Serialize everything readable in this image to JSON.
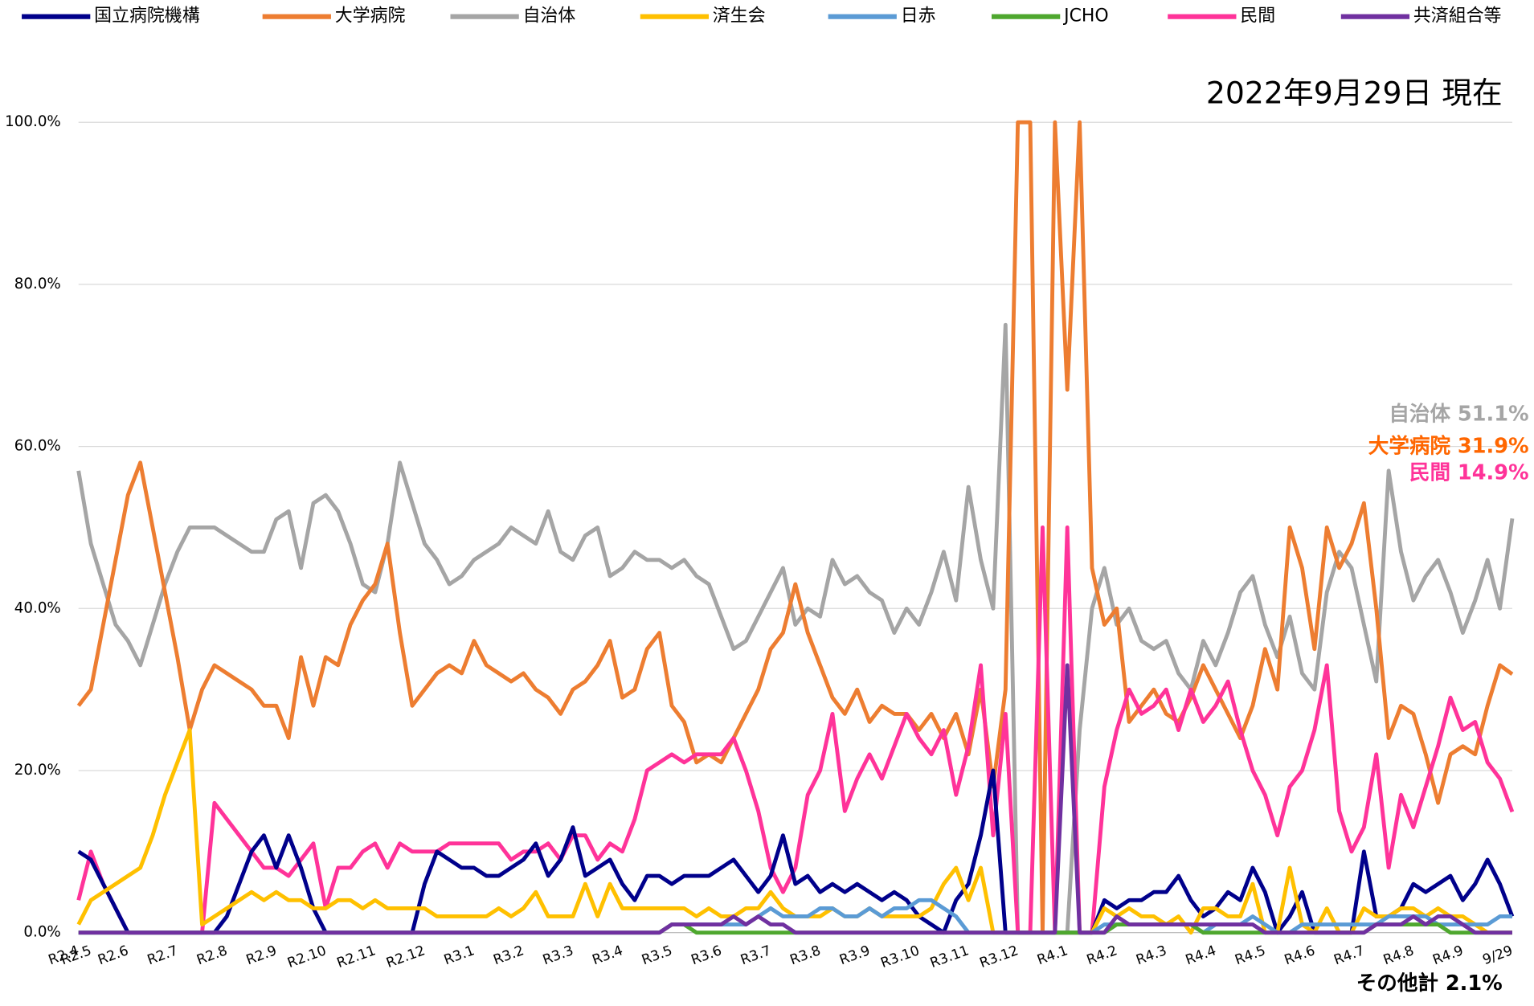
{
  "chart_data": {
    "type": "line",
    "annotations": [
      "2022年9月29日 現在",
      "自治体 51.1%",
      "大学病院 31.9%",
      "民間 14.9%",
      "その他計 2.1%"
    ],
    "categories": [
      "R2.4",
      "R2.5",
      null,
      null,
      "R2.6",
      null,
      null,
      null,
      "R2.7",
      null,
      null,
      null,
      "R2.8",
      null,
      null,
      null,
      "R2.9",
      null,
      null,
      null,
      "R2.10",
      null,
      null,
      null,
      "R2.11",
      null,
      null,
      null,
      "R2.12",
      null,
      null,
      null,
      "R3.1",
      null,
      null,
      null,
      "R3.2",
      null,
      null,
      null,
      "R3.3",
      null,
      null,
      null,
      "R3.4",
      null,
      null,
      null,
      "R3.5",
      null,
      null,
      null,
      "R3.6",
      null,
      null,
      null,
      "R3.7",
      null,
      null,
      null,
      "R3.8",
      null,
      null,
      null,
      "R3.9",
      null,
      null,
      null,
      "R3.10",
      null,
      null,
      null,
      "R3.11",
      null,
      null,
      null,
      "R3.12",
      null,
      null,
      null,
      "R4.1",
      null,
      null,
      null,
      "R4.2",
      null,
      null,
      null,
      "R4.3",
      null,
      null,
      null,
      "R4.4",
      null,
      null,
      null,
      "R4.5",
      null,
      null,
      null,
      "R4.6",
      null,
      null,
      null,
      "R4.7",
      null,
      null,
      null,
      "R4.8",
      null,
      null,
      null,
      "R4.9",
      null,
      null,
      null,
      "9/29"
    ],
    "ylim": [
      0,
      100
    ],
    "yticks": [
      {
        "value": 0,
        "label": "0.0%"
      },
      {
        "value": 20,
        "label": "20.0%"
      },
      {
        "value": 40,
        "label": "40.0%"
      },
      {
        "value": 60,
        "label": "60.0%"
      },
      {
        "value": 80,
        "label": "80.0%"
      },
      {
        "value": 100,
        "label": "100.0%"
      }
    ],
    "grid": true,
    "legend": "top",
    "series": [
      {
        "name": "国立病院機構",
        "color": "#00008b",
        "values": [
          10,
          9,
          6,
          3,
          0,
          0,
          0,
          0,
          0,
          0,
          0,
          0,
          2,
          6,
          10,
          12,
          8,
          12,
          8,
          3,
          0,
          0,
          0,
          0,
          0,
          0,
          0,
          0,
          6,
          10,
          9,
          8,
          8,
          7,
          7,
          8,
          9,
          11,
          7,
          9,
          13,
          7,
          8,
          9,
          6,
          4,
          7,
          7,
          6,
          7,
          7,
          7,
          8,
          9,
          7,
          5,
          7,
          12,
          6,
          7,
          5,
          6,
          5,
          6,
          5,
          4,
          5,
          4,
          2,
          1,
          0,
          4,
          6,
          12,
          20,
          0,
          0,
          0,
          0,
          0,
          0,
          0,
          0,
          4,
          3,
          4,
          4,
          5,
          5,
          7,
          4,
          2,
          3,
          5,
          4,
          8,
          5,
          0,
          2,
          5,
          0,
          0,
          0,
          0,
          10,
          2,
          2,
          3,
          6,
          5,
          6,
          7,
          4,
          6,
          9,
          6,
          2
        ]
      },
      {
        "name": "大学病院",
        "color": "#ed7d31",
        "values": [
          28,
          30,
          38,
          46,
          54,
          58,
          50,
          42,
          34,
          25,
          30,
          33,
          32,
          31,
          30,
          28,
          28,
          24,
          34,
          28,
          34,
          33,
          38,
          41,
          43,
          48,
          37,
          28,
          30,
          32,
          33,
          32,
          36,
          33,
          32,
          31,
          32,
          30,
          29,
          27,
          30,
          31,
          33,
          36,
          29,
          30,
          35,
          37,
          28,
          26,
          21,
          22,
          21,
          24,
          27,
          30,
          35,
          37,
          43,
          37,
          33,
          29,
          27,
          30,
          26,
          28,
          27,
          27,
          25,
          27,
          24,
          27,
          22,
          30,
          18,
          30,
          100,
          100,
          0,
          100,
          67,
          100,
          45,
          38,
          40,
          26,
          28,
          30,
          27,
          26,
          29,
          33,
          30,
          27,
          24,
          28,
          35,
          30,
          50,
          45,
          35,
          50,
          45,
          48,
          53,
          40,
          24,
          28,
          27,
          22,
          16,
          22,
          23,
          22,
          28,
          33,
          31.9
        ]
      },
      {
        "name": "自治体",
        "color": "#a5a5a5",
        "values": [
          57,
          48,
          43,
          38,
          36,
          33,
          38,
          43,
          47,
          50,
          50,
          50,
          49,
          48,
          47,
          47,
          51,
          52,
          45,
          53,
          54,
          52,
          48,
          43,
          42,
          48,
          58,
          53,
          48,
          46,
          43,
          44,
          46,
          47,
          48,
          50,
          49,
          48,
          52,
          47,
          46,
          49,
          50,
          44,
          45,
          47,
          46,
          46,
          45,
          46,
          44,
          43,
          39,
          35,
          36,
          39,
          42,
          45,
          38,
          40,
          39,
          46,
          43,
          44,
          42,
          41,
          37,
          40,
          38,
          42,
          47,
          41,
          55,
          46,
          40,
          75,
          0,
          0,
          0,
          0,
          0,
          25,
          40,
          45,
          38,
          40,
          36,
          35,
          36,
          32,
          30,
          36,
          33,
          37,
          42,
          44,
          38,
          34,
          39,
          32,
          30,
          42,
          47,
          45,
          38,
          31,
          57,
          47,
          41,
          44,
          46,
          42,
          37,
          41,
          46,
          40,
          51.1
        ]
      },
      {
        "name": "済生会",
        "color": "#ffc000",
        "values": [
          1,
          4,
          5,
          6,
          7,
          8,
          12,
          17,
          21,
          25,
          1,
          2,
          3,
          4,
          5,
          4,
          5,
          4,
          4,
          3,
          3,
          4,
          4,
          3,
          4,
          3,
          3,
          3,
          3,
          2,
          2,
          2,
          2,
          2,
          3,
          2,
          3,
          5,
          2,
          2,
          2,
          6,
          2,
          6,
          3,
          3,
          3,
          3,
          3,
          3,
          2,
          3,
          2,
          2,
          3,
          3,
          5,
          3,
          2,
          2,
          2,
          3,
          2,
          2,
          3,
          2,
          2,
          2,
          2,
          3,
          6,
          8,
          4,
          8,
          0,
          0,
          0,
          0,
          0,
          0,
          0,
          0,
          0,
          3,
          2,
          3,
          2,
          2,
          1,
          2,
          0,
          3,
          3,
          2,
          2,
          6,
          0,
          0,
          8,
          1,
          0,
          3,
          0,
          0,
          3,
          2,
          2,
          3,
          3,
          2,
          3,
          2,
          2,
          1,
          0,
          0,
          0
        ]
      },
      {
        "name": "日赤",
        "color": "#5b9bd5",
        "values": [
          0,
          0,
          0,
          0,
          0,
          0,
          0,
          0,
          0,
          0,
          0,
          0,
          0,
          0,
          0,
          0,
          0,
          0,
          0,
          0,
          0,
          0,
          0,
          0,
          0,
          0,
          0,
          0,
          0,
          0,
          0,
          0,
          0,
          0,
          0,
          0,
          0,
          0,
          0,
          0,
          0,
          0,
          0,
          0,
          0,
          0,
          0,
          0,
          1,
          1,
          1,
          1,
          1,
          1,
          1,
          2,
          3,
          2,
          2,
          2,
          3,
          3,
          2,
          2,
          3,
          2,
          3,
          3,
          4,
          4,
          3,
          2,
          0,
          0,
          0,
          0,
          0,
          0,
          0,
          0,
          0,
          0,
          0,
          1,
          1,
          1,
          1,
          1,
          1,
          1,
          1,
          0,
          1,
          1,
          1,
          2,
          1,
          0,
          0,
          1,
          1,
          1,
          1,
          1,
          1,
          1,
          2,
          2,
          2,
          2,
          1,
          1,
          1,
          1,
          1,
          2,
          2
        ]
      },
      {
        "name": "JCHO",
        "color": "#4ea72e",
        "values": [
          0,
          0,
          0,
          0,
          0,
          0,
          0,
          0,
          0,
          0,
          0,
          0,
          0,
          0,
          0,
          0,
          0,
          0,
          0,
          0,
          0,
          0,
          0,
          0,
          0,
          0,
          0,
          0,
          0,
          0,
          0,
          0,
          0,
          0,
          0,
          0,
          0,
          0,
          0,
          0,
          0,
          0,
          0,
          0,
          0,
          0,
          0,
          0,
          1,
          1,
          0,
          0,
          0,
          0,
          0,
          0,
          0,
          0,
          0,
          0,
          0,
          0,
          0,
          0,
          0,
          0,
          0,
          0,
          0,
          0,
          0,
          0,
          0,
          0,
          0,
          0,
          0,
          0,
          0,
          0,
          0,
          0,
          0,
          0,
          1,
          1,
          1,
          1,
          1,
          1,
          1,
          0,
          0,
          0,
          0,
          0,
          0,
          0,
          0,
          0,
          0,
          0,
          0,
          0,
          0,
          1,
          1,
          1,
          1,
          1,
          1,
          0,
          0,
          0,
          0,
          0,
          0
        ]
      },
      {
        "name": "民間",
        "color": "#ff3399",
        "values": [
          4,
          10,
          6,
          3,
          0,
          0,
          0,
          0,
          0,
          0,
          0,
          16,
          14,
          12,
          10,
          8,
          8,
          7,
          9,
          11,
          3,
          8,
          8,
          10,
          11,
          8,
          11,
          10,
          10,
          10,
          11,
          11,
          11,
          11,
          11,
          9,
          10,
          10,
          11,
          9,
          12,
          12,
          9,
          11,
          10,
          14,
          20,
          21,
          22,
          21,
          22,
          22,
          22,
          24,
          20,
          15,
          8,
          5,
          8,
          17,
          20,
          27,
          15,
          19,
          22,
          19,
          23,
          27,
          24,
          22,
          25,
          17,
          23,
          33,
          12,
          27,
          0,
          0,
          50,
          0,
          50,
          0,
          0,
          18,
          25,
          30,
          27,
          28,
          30,
          25,
          30,
          26,
          28,
          31,
          25,
          20,
          17,
          12,
          18,
          20,
          25,
          33,
          15,
          10,
          13,
          22,
          8,
          17,
          13,
          18,
          23,
          29,
          25,
          26,
          21,
          19,
          14.9
        ]
      },
      {
        "name": "共済組合等",
        "color": "#7030a0",
        "values": [
          0,
          0,
          0,
          0,
          0,
          0,
          0,
          0,
          0,
          0,
          0,
          0,
          0,
          0,
          0,
          0,
          0,
          0,
          0,
          0,
          0,
          0,
          0,
          0,
          0,
          0,
          0,
          0,
          0,
          0,
          0,
          0,
          0,
          0,
          0,
          0,
          0,
          0,
          0,
          0,
          0,
          0,
          0,
          0,
          0,
          0,
          0,
          0,
          1,
          1,
          1,
          1,
          1,
          2,
          1,
          2,
          1,
          1,
          0,
          0,
          0,
          0,
          0,
          0,
          0,
          0,
          0,
          0,
          0,
          0,
          0,
          0,
          0,
          0,
          0,
          0,
          0,
          0,
          0,
          0,
          33,
          0,
          0,
          0,
          2,
          1,
          1,
          1,
          1,
          1,
          1,
          1,
          1,
          1,
          1,
          1,
          0,
          0,
          0,
          0,
          0,
          0,
          0,
          0,
          0,
          1,
          1,
          1,
          2,
          1,
          2,
          2,
          1,
          0,
          0,
          0,
          0
        ]
      }
    ]
  }
}
